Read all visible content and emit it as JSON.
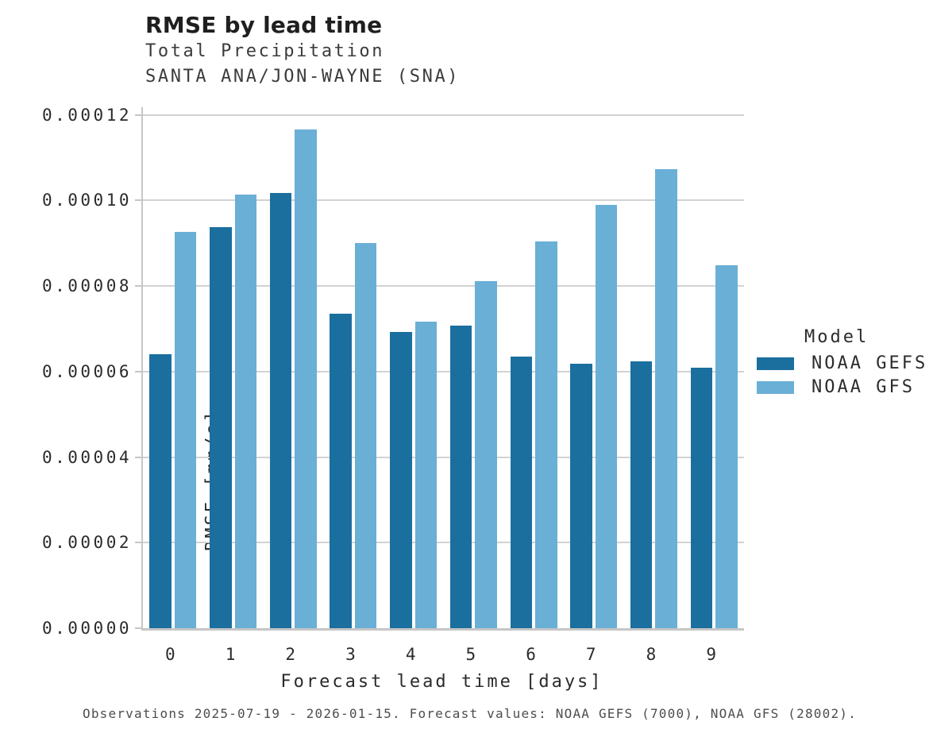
{
  "chart_data": {
    "type": "bar",
    "title": "RMSE by lead time",
    "subtitle_lines": [
      "Total Precipitation",
      "SANTA ANA/JON-WAYNE (SNA)"
    ],
    "xlabel": "Forecast lead time [days]",
    "ylabel": "RMSE [mm/s]",
    "categories": [
      "0",
      "1",
      "2",
      "3",
      "4",
      "5",
      "6",
      "7",
      "8",
      "9"
    ],
    "series": [
      {
        "name": "NOAA GEFS",
        "color": "#1B6F9E",
        "values": [
          6.4e-05,
          9.38e-05,
          0.0001018,
          7.35e-05,
          6.92e-05,
          7.08e-05,
          6.35e-05,
          6.18e-05,
          6.23e-05,
          6.09e-05
        ]
      },
      {
        "name": "NOAA GFS",
        "color": "#6AAFD6",
        "values": [
          9.27e-05,
          0.0001013,
          0.0001166,
          9.01e-05,
          7.17e-05,
          8.12e-05,
          9.04e-05,
          9.9e-05,
          0.0001073,
          8.48e-05
        ]
      }
    ],
    "ylim": [
      0,
      0.0001218
    ],
    "yticks": [
      {
        "value": 0.0,
        "label": "0.00000"
      },
      {
        "value": 2e-05,
        "label": "0.00002"
      },
      {
        "value": 4e-05,
        "label": "0.00004"
      },
      {
        "value": 6e-05,
        "label": "0.00006"
      },
      {
        "value": 8e-05,
        "label": "0.00008"
      },
      {
        "value": 0.0001,
        "label": "0.00010"
      },
      {
        "value": 0.00012,
        "label": "0.00012"
      }
    ],
    "grid": "horizontal",
    "legend": {
      "title": "Model",
      "position": "right"
    },
    "caption": "Observations 2025-07-19 - 2026-01-15. Forecast values: NOAA GEFS (7000), NOAA GFS (28002)."
  }
}
